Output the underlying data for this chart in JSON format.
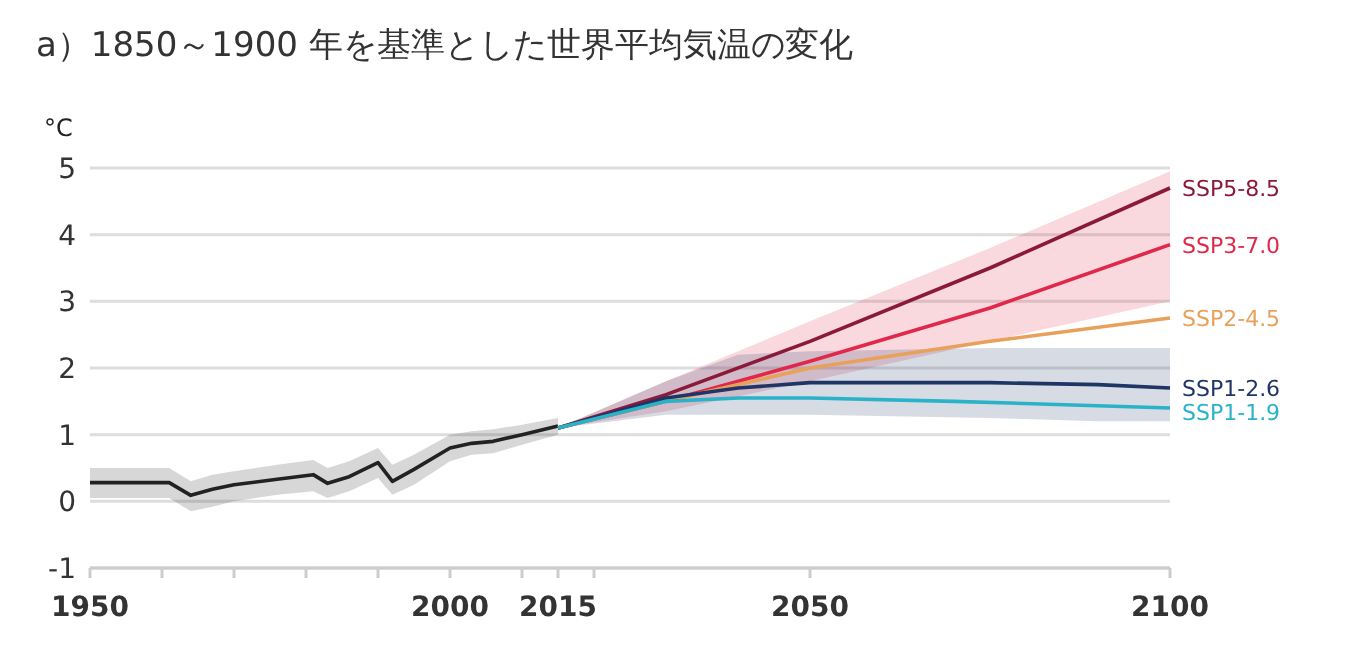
{
  "chart_data": {
    "type": "line",
    "title": "a）1850～1900 年を基準とした世界平均気温の変化",
    "ylabel": "°C",
    "xlim": [
      1950,
      2100
    ],
    "ylim": [
      -1,
      5
    ],
    "xticks": [
      1950,
      {
        "value": 1960,
        "label": null
      },
      {
        "value": 1970,
        "label": null
      },
      {
        "value": 1980,
        "label": null
      },
      {
        "value": 1990,
        "label": null
      },
      2000,
      {
        "value": 2010,
        "label": null
      },
      2015,
      {
        "value": 2020,
        "label": null
      },
      2050,
      2100
    ],
    "yticks": [
      {
        "value": -1,
        "label": "-1"
      },
      0,
      1,
      2,
      3,
      4,
      5
    ],
    "grid": "y",
    "line_style": "solid",
    "marker": "none",
    "series": [
      {
        "color": "#222222",
        "x": [
          1950,
          1955,
          1961,
          1964,
          1967,
          1970,
          1976,
          1981,
          1983,
          1986,
          1990,
          1992,
          1995,
          2000,
          2003,
          2006,
          2010,
          2015
        ],
        "values": [
          0.28,
          0.28,
          0.28,
          0.09,
          0.18,
          0.25,
          0.33,
          0.4,
          0.27,
          0.37,
          0.58,
          0.3,
          0.48,
          0.8,
          0.87,
          0.9,
          1.0,
          1.13
        ],
        "lower": [
          0.05,
          0.05,
          0.05,
          -0.15,
          -0.08,
          0.0,
          0.1,
          0.15,
          0.05,
          0.15,
          0.35,
          0.1,
          0.25,
          0.6,
          0.7,
          0.72,
          0.85,
          1.0
        ],
        "upper": [
          0.5,
          0.5,
          0.5,
          0.3,
          0.4,
          0.45,
          0.55,
          0.62,
          0.5,
          0.6,
          0.8,
          0.55,
          0.7,
          1.0,
          1.05,
          1.08,
          1.15,
          1.25
        ]
      },
      {
        "name": "SSP5-8.5",
        "color": "#8b1a3a",
        "x": [
          2015,
          2030,
          2050,
          2075,
          2100
        ],
        "values": [
          1.1,
          1.6,
          2.4,
          3.5,
          4.7
        ]
      },
      {
        "name": "SSP3-7.0",
        "color": "#e0284a",
        "x": [
          2015,
          2030,
          2050,
          2075,
          2100
        ],
        "values": [
          1.1,
          1.5,
          2.1,
          2.9,
          3.85
        ],
        "lower": [
          1.1,
          1.35,
          1.8,
          2.4,
          3.0
        ],
        "upper": [
          1.1,
          1.8,
          2.7,
          3.8,
          4.95
        ]
      },
      {
        "name": "SSP2-4.5",
        "color": "#e8a15a",
        "x": [
          2015,
          2030,
          2050,
          2075,
          2100
        ],
        "values": [
          1.1,
          1.5,
          2.0,
          2.4,
          2.75
        ]
      },
      {
        "name": "SSP1-2.6",
        "color": "#1f3566",
        "x": [
          2015,
          2030,
          2040,
          2050,
          2075,
          2090,
          2100
        ],
        "values": [
          1.1,
          1.55,
          1.7,
          1.78,
          1.78,
          1.75,
          1.7
        ],
        "lower": [
          1.1,
          1.3,
          1.3,
          1.3,
          1.25,
          1.2,
          1.2
        ],
        "upper": [
          1.1,
          1.8,
          2.2,
          2.25,
          2.3,
          2.3,
          2.3
        ]
      },
      {
        "name": "SSP1-1.9",
        "color": "#2ab3c8",
        "x": [
          2015,
          2030,
          2040,
          2050,
          2070,
          2100
        ],
        "values": [
          1.1,
          1.5,
          1.55,
          1.55,
          1.5,
          1.4
        ]
      }
    ]
  }
}
